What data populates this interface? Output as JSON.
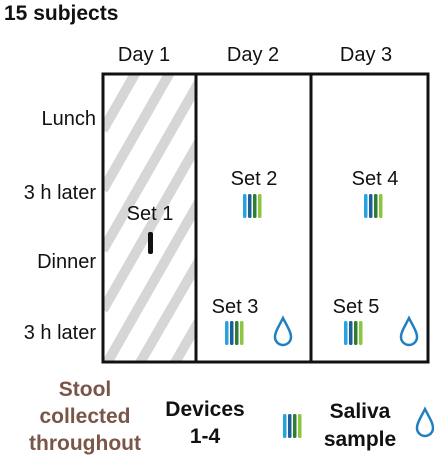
{
  "title": "15 subjects",
  "days": [
    "Day 1",
    "Day 2",
    "Day 3"
  ],
  "timepoints": [
    "Lunch",
    "3 h later",
    "Dinner",
    "3 h later"
  ],
  "sets": {
    "set1": "Set 1",
    "set2": "Set 2",
    "set3": "Set 3",
    "set4": "Set 4",
    "set5": "Set 5"
  },
  "legend": {
    "stool_line1": "Stool",
    "stool_line2": "collected",
    "stool_line3": "throughout",
    "devices_line1": "Devices",
    "devices_line2": "1-4",
    "saliva_line1": "Saliva",
    "saliva_line2": "sample"
  },
  "colors": {
    "stool_text": "#7a5648",
    "device_blue_light": "#29a3e0",
    "device_blue_dark": "#1f5f99",
    "device_green_light": "#8cc63f",
    "device_green_dark": "#2e7d32",
    "drop": "#1f7fbf",
    "hatch": "#d6d6d6"
  },
  "icons": {
    "device": "device-strip-icon",
    "drop": "saliva-drop-icon"
  }
}
